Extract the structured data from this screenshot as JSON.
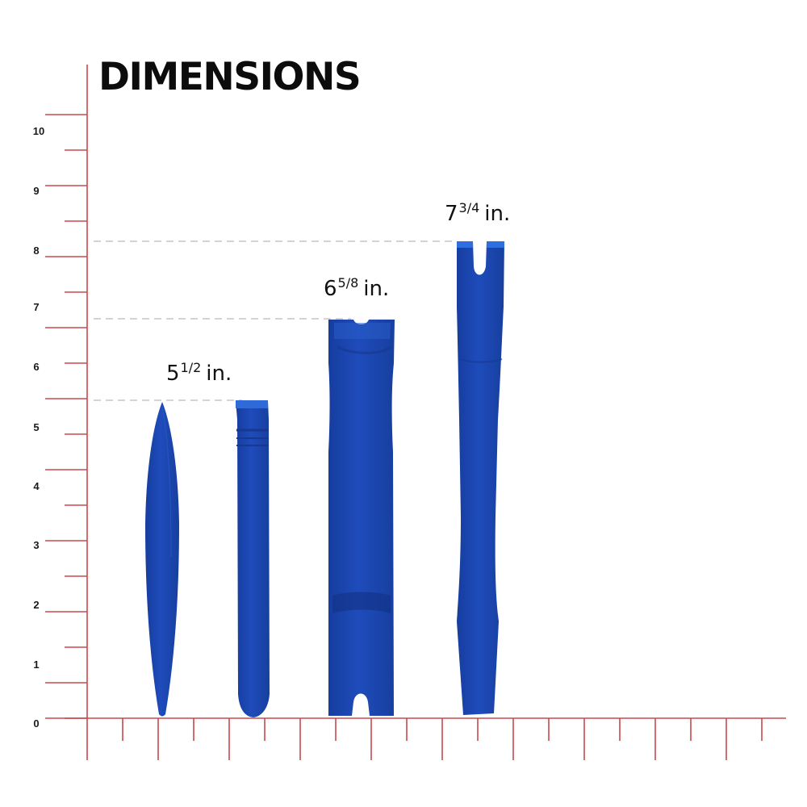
{
  "title": "DIMENSIONS",
  "colors": {
    "ruler": "#c9484b",
    "tool_blue": "#1c47b4",
    "tool_blue_dark": "#163a97",
    "tool_blue_light": "#2a62d6",
    "guide": "#d7d7d7"
  },
  "y_axis_labels": [
    "0",
    "1",
    "2",
    "3",
    "4",
    "5",
    "6",
    "7",
    "8",
    "9",
    "10"
  ],
  "dimensions": [
    {
      "whole": "5",
      "fraction": "1/2",
      "unit": "in."
    },
    {
      "whole": "6",
      "fraction": "5/8",
      "unit": "in."
    },
    {
      "whole": "7",
      "fraction": "3/4",
      "unit": "in."
    }
  ],
  "tools": [
    {
      "name": "pointed-pry-tool",
      "length_in": 5.5
    },
    {
      "name": "flat-wedge-pry-tool",
      "length_in": 5.5
    },
    {
      "name": "wide-notched-pry-tool",
      "length_in": 6.625
    },
    {
      "name": "forked-pry-tool",
      "length_in": 7.75
    }
  ]
}
